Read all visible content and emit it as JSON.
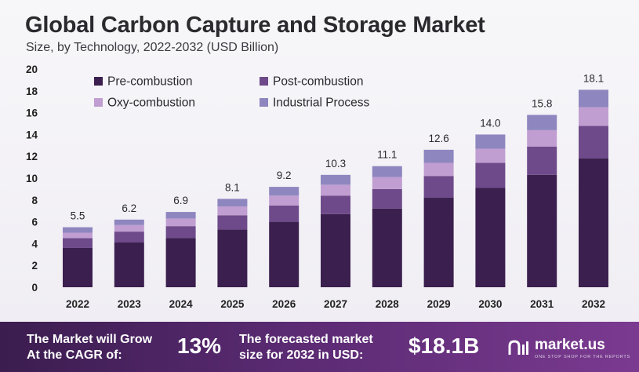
{
  "chart_data": {
    "type": "bar",
    "stacked": true,
    "title": "Global Carbon Capture and Storage Market",
    "subtitle": "Size, by Technology, 2022-2032 (USD Billion)",
    "xlabel": "",
    "ylabel": "",
    "ylim": [
      0,
      20
    ],
    "yticks": [
      0,
      2,
      4,
      6,
      8,
      10,
      12,
      14,
      16,
      18,
      20
    ],
    "grid": false,
    "legend_position": "top-left",
    "categories": [
      "2022",
      "2023",
      "2024",
      "2025",
      "2026",
      "2027",
      "2028",
      "2029",
      "2030",
      "2031",
      "2032"
    ],
    "totals": [
      "5.5",
      "6.2",
      "6.9",
      "8.1",
      "9.2",
      "10.3",
      "11.1",
      "12.6",
      "14.0",
      "15.8",
      "18.1"
    ],
    "series": [
      {
        "name": "Pre-combustion",
        "color": "#3b1f4e",
        "values": [
          3.6,
          4.1,
          4.5,
          5.3,
          6.0,
          6.7,
          7.2,
          8.2,
          9.1,
          10.3,
          11.8
        ]
      },
      {
        "name": "Post-combustion",
        "color": "#6e4a8a",
        "values": [
          0.9,
          1.0,
          1.1,
          1.3,
          1.5,
          1.7,
          1.8,
          2.0,
          2.3,
          2.6,
          3.0
        ]
      },
      {
        "name": "Oxy-combustion",
        "color": "#c09ed1",
        "values": [
          0.5,
          0.6,
          0.7,
          0.8,
          0.9,
          1.0,
          1.1,
          1.2,
          1.3,
          1.5,
          1.7
        ]
      },
      {
        "name": "Industrial Process",
        "color": "#8e86bf",
        "values": [
          0.5,
          0.5,
          0.6,
          0.7,
          0.8,
          0.9,
          1.0,
          1.2,
          1.3,
          1.4,
          1.6
        ]
      }
    ]
  },
  "footer": {
    "cagr_line1": "The Market will Grow",
    "cagr_line2": "At the CAGR of:",
    "cagr_value": "13%",
    "forecast_line1": "The forecasted market",
    "forecast_line2": "size for 2032 in USD:",
    "forecast_value": "$18.1B",
    "brand": "market.us",
    "tagline": "ONE STOP SHOP FOR THE REPORTS"
  }
}
